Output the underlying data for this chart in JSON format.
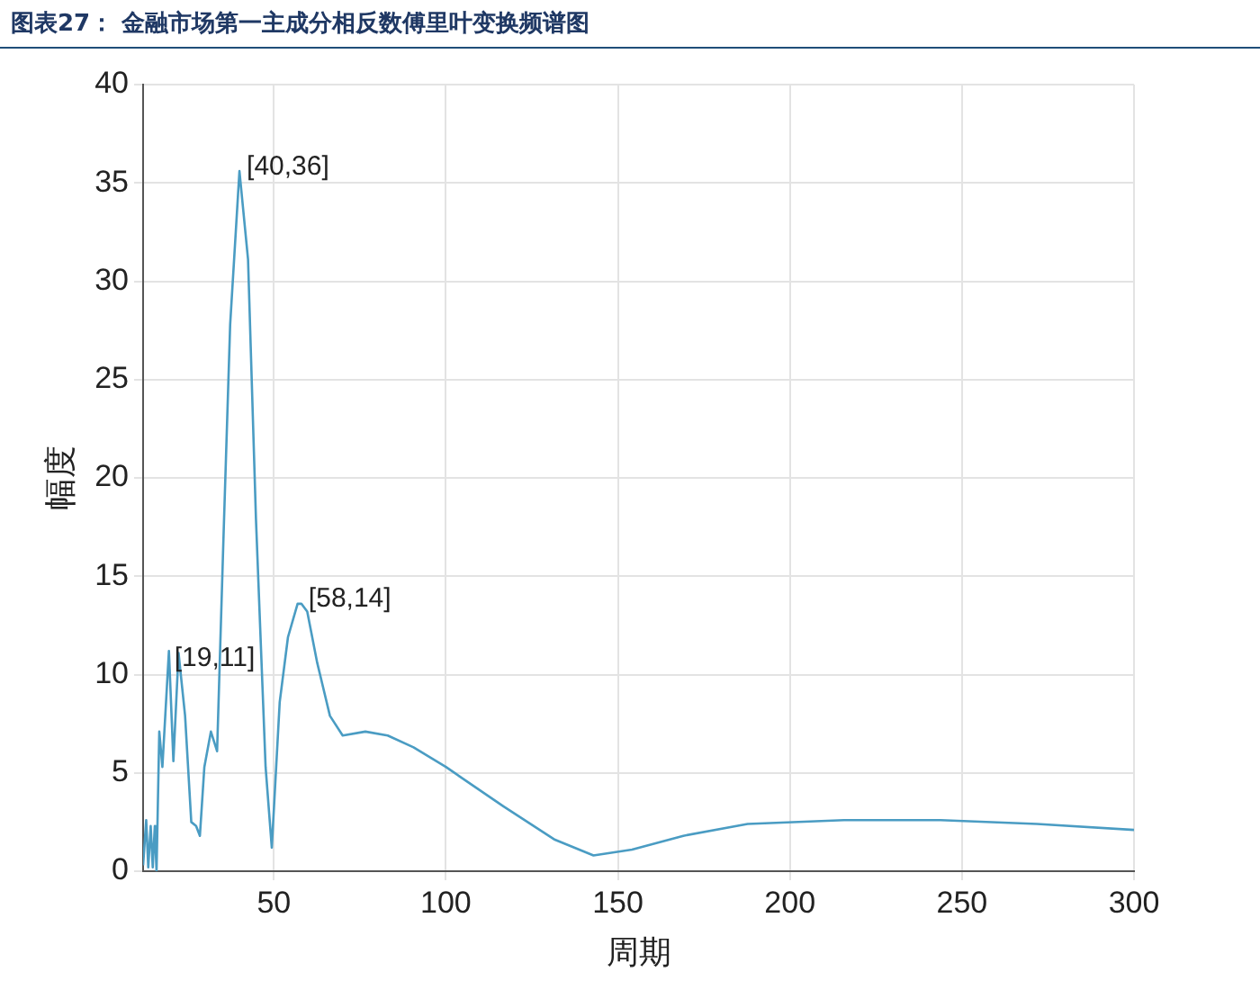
{
  "chart_data": {
    "type": "line",
    "title": "图表27：  金融市场第一主成分相反数傅里叶变换频谱图",
    "xlabel": "周期",
    "ylabel": "幅度",
    "xlim": [
      12,
      300
    ],
    "xticks": [
      50,
      100,
      150,
      200,
      250,
      300
    ],
    "ylim": [
      0,
      40
    ],
    "yticks": [
      0,
      5,
      10,
      15,
      20,
      25,
      30,
      35,
      40
    ],
    "grid": true,
    "marker": "none",
    "line_style": "solid",
    "series": [
      {
        "color": "#4a9cc3",
        "x": [
          12,
          12.9,
          13.5,
          14.2,
          14.8,
          15.4,
          15.9,
          16.7,
          17.6,
          19.5,
          20.8,
          22.3,
          24.2,
          26,
          27.4,
          28.5,
          29.8,
          31.7,
          33.5,
          35.4,
          37.3,
          40,
          42.5,
          44.8,
          47.6,
          49.4,
          51.7,
          54.1,
          56.9,
          58,
          59.7,
          62.6,
          66.3,
          70,
          76.6,
          83.1,
          90.6,
          100,
          116.7,
          131.7,
          142.9,
          154.1,
          169,
          187.7,
          215.7,
          243.8,
          271.8,
          300
        ],
        "values": [
          0.3,
          2.6,
          0.2,
          2.3,
          0.2,
          2.3,
          0,
          7.1,
          5.3,
          11.2,
          5.6,
          11.1,
          7.9,
          2.5,
          2.3,
          1.8,
          5.3,
          7.1,
          6.1,
          17.2,
          27.8,
          35.6,
          31.1,
          17.9,
          5.3,
          1.2,
          8.6,
          11.9,
          13.6,
          13.6,
          13.2,
          10.6,
          7.9,
          6.9,
          7.1,
          6.9,
          6.3,
          5.3,
          3.3,
          1.6,
          0.8,
          1.1,
          1.8,
          2.4,
          2.6,
          2.6,
          2.4,
          2.1
        ]
      }
    ],
    "annotations": [
      {
        "text": "[19,11]",
        "x": 19,
        "y": 11
      },
      {
        "text": "[40,36]",
        "x": 40,
        "y": 36
      },
      {
        "text": "[58,14]",
        "x": 58,
        "y": 14
      }
    ]
  }
}
